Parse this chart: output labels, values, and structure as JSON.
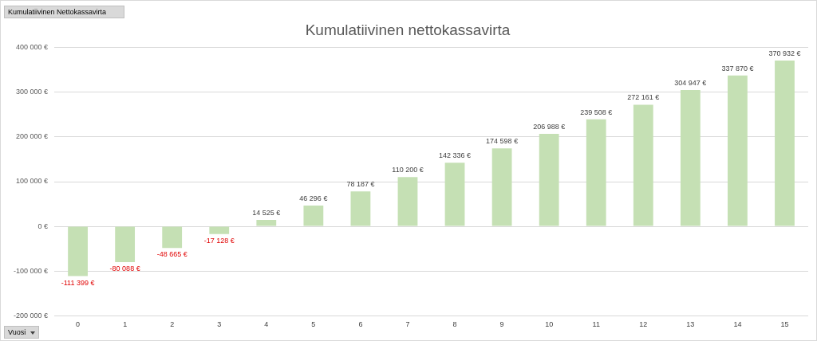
{
  "chart_data": {
    "type": "bar",
    "title": "Kumulatiivinen nettokassavirta",
    "categories": [
      "0",
      "1",
      "2",
      "3",
      "4",
      "5",
      "6",
      "7",
      "8",
      "9",
      "10",
      "11",
      "12",
      "13",
      "14",
      "15"
    ],
    "values": [
      -111399,
      -80088,
      -48665,
      -17128,
      14525,
      46296,
      78187,
      110200,
      142336,
      174598,
      206988,
      239508,
      272161,
      304947,
      337870,
      370932
    ],
    "value_labels": [
      "-111 399 €",
      "-80 088 €",
      "-48 665 €",
      "-17 128 €",
      "14 525 €",
      "46 296 €",
      "78 187 €",
      "110 200 €",
      "142 336 €",
      "174 598 €",
      "206 988 €",
      "239 508 €",
      "272 161 €",
      "304 947 €",
      "337 870 €",
      "370 932 €"
    ],
    "color": "#c5e0b4",
    "ylim": [
      -200000,
      400000
    ],
    "yticks": [
      {
        "value": -200000,
        "label": "-200 000 €"
      },
      {
        "value": -100000,
        "label": "-100 000 €"
      },
      {
        "value": 0,
        "label": "0 €"
      },
      {
        "value": 100000,
        "label": "100 000 €"
      },
      {
        "value": 200000,
        "label": "200 000 €"
      },
      {
        "value": 300000,
        "label": "300 000 €"
      },
      {
        "value": 400000,
        "label": "400 000 €"
      }
    ],
    "grid": "y",
    "legend": false,
    "annotations": [
      "Kumulatiivinen Nettokassavirta",
      "Vuosi"
    ]
  }
}
